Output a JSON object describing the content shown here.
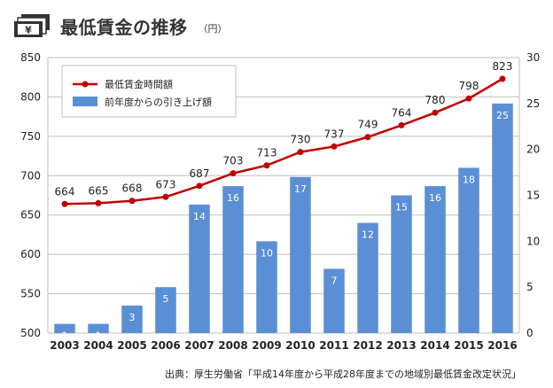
{
  "header": {
    "title": "最低賃金の推移",
    "unit": "（円）"
  },
  "source": "出典：厚生労働省「平成14年度から平成28年度までの地域別最低賃金改定状況」",
  "colors": {
    "line": "#c00000",
    "bar": "#5b8fd5",
    "bar_label": "#ffffff",
    "grid": "#bfbfbf",
    "text": "#222222"
  },
  "chart_data": {
    "type": "bar",
    "categories": [
      "2003",
      "2004",
      "2005",
      "2006",
      "2007",
      "2008",
      "2009",
      "2010",
      "2011",
      "2012",
      "2013",
      "2014",
      "2015",
      "2016"
    ],
    "series": [
      {
        "name": "最低賃金時間額",
        "type": "line",
        "axis": "left",
        "values": [
          664,
          665,
          668,
          673,
          687,
          703,
          713,
          730,
          737,
          749,
          764,
          780,
          798,
          823
        ]
      },
      {
        "name": "前年度からの引き上げ額",
        "type": "bar",
        "axis": "right",
        "values": [
          1,
          1,
          3,
          5,
          14,
          16,
          10,
          17,
          7,
          12,
          15,
          16,
          18,
          25
        ]
      }
    ],
    "y_left": {
      "min": 500,
      "max": 850,
      "ticks": [
        "500",
        "550",
        "600",
        "650",
        "700",
        "750",
        "800",
        "850"
      ]
    },
    "y_right": {
      "min": 0,
      "max": 30,
      "ticks": [
        "0",
        "5",
        "10",
        "15",
        "20",
        "25",
        "30"
      ]
    },
    "grid": true,
    "legend": "top-left"
  }
}
